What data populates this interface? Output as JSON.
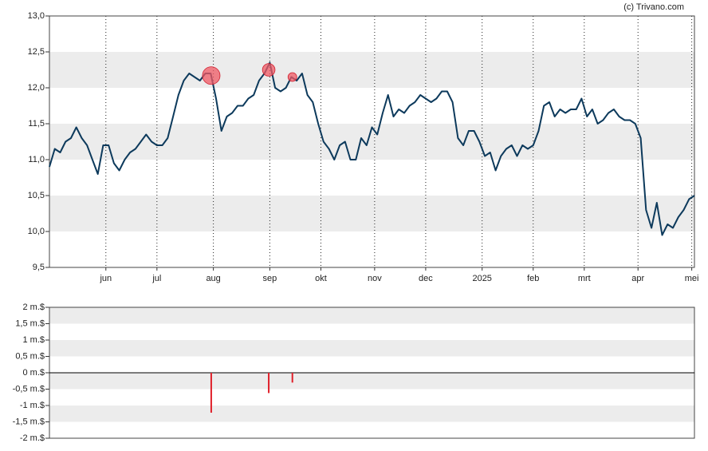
{
  "chart_data": [
    {
      "type": "line",
      "source": "(c) Trivano.com",
      "color": "#0d3a5c",
      "values": [
        10.9,
        11.15,
        11.1,
        11.25,
        11.3,
        11.45,
        11.3,
        11.2,
        11.0,
        10.8,
        11.2,
        11.2,
        10.95,
        10.85,
        11.0,
        11.1,
        11.15,
        11.25,
        11.35,
        11.25,
        11.2,
        11.2,
        11.3,
        11.6,
        11.9,
        12.1,
        12.2,
        12.15,
        12.1,
        12.2,
        12.2,
        11.85,
        11.4,
        11.6,
        11.65,
        11.75,
        11.75,
        11.85,
        11.9,
        12.1,
        12.2,
        12.35,
        12.0,
        11.95,
        12.0,
        12.15,
        12.1,
        12.2,
        11.9,
        11.8,
        11.5,
        11.25,
        11.15,
        11.0,
        11.2,
        11.25,
        11.0,
        11.0,
        11.3,
        11.2,
        11.45,
        11.35,
        11.65,
        11.9,
        11.6,
        11.7,
        11.65,
        11.75,
        11.8,
        11.9,
        11.85,
        11.8,
        11.85,
        11.95,
        11.95,
        11.8,
        11.3,
        11.2,
        11.4,
        11.4,
        11.25,
        11.05,
        11.1,
        10.85,
        11.05,
        11.15,
        11.2,
        11.05,
        11.2,
        11.15,
        11.2,
        11.4,
        11.75,
        11.8,
        11.6,
        11.7,
        11.65,
        11.7,
        11.7,
        11.85,
        11.6,
        11.7,
        11.5,
        11.55,
        11.65,
        11.7,
        11.6,
        11.55,
        11.55,
        11.5,
        11.3,
        10.3,
        10.05,
        10.4,
        9.95,
        10.1,
        10.05,
        10.2,
        10.3,
        10.45,
        10.5
      ],
      "markers": {
        "x": [
          30.1,
          40.8,
          45.2
        ],
        "values": [
          12.17,
          12.25,
          12.15
        ],
        "color": "#f05a64"
      },
      "xlim": [
        0,
        120
      ],
      "xticks": [
        {
          "value": 10.5,
          "label": "jun"
        },
        {
          "value": 20,
          "label": "jul"
        },
        {
          "value": 30.5,
          "label": "aug"
        },
        {
          "value": 41,
          "label": "sep"
        },
        {
          "value": 50.5,
          "label": "okt"
        },
        {
          "value": 60.5,
          "label": "nov"
        },
        {
          "value": 70,
          "label": "dec"
        },
        {
          "value": 80.5,
          "label": "2025"
        },
        {
          "value": 90,
          "label": "feb"
        },
        {
          "value": 99.5,
          "label": "mrt"
        },
        {
          "value": 109.5,
          "label": "apr"
        },
        {
          "value": 119.5,
          "label": "mei"
        }
      ],
      "ylim": [
        9.5,
        13
      ],
      "yticks": [
        {
          "value": 9.5,
          "label": "9,5"
        },
        {
          "value": 10,
          "label": "10,0"
        },
        {
          "value": 10.5,
          "label": "10,5"
        },
        {
          "value": 11,
          "label": "11,0"
        },
        {
          "value": 11.5,
          "label": "11,5"
        },
        {
          "value": 12,
          "label": "12,0"
        },
        {
          "value": 12.5,
          "label": "12,5"
        },
        {
          "value": 13,
          "label": "13,0"
        }
      ],
      "grid": true
    },
    {
      "type": "bar",
      "color": "#e0202a",
      "x": [
        30.1,
        40.8,
        45.2
      ],
      "values": [
        -1.22,
        -0.62,
        -0.3
      ],
      "xlim": [
        0,
        120
      ],
      "ylim": [
        -2,
        2
      ],
      "yticks": [
        {
          "value": -2,
          "label": "-2 m.$"
        },
        {
          "value": -1.5,
          "label": "-1,5 m.$"
        },
        {
          "value": -1,
          "label": "-1 m.$"
        },
        {
          "value": -0.5,
          "label": "-0,5 m.$"
        },
        {
          "value": 0,
          "label": "0 m.$"
        },
        {
          "value": 0.5,
          "label": "0,5 m.$"
        },
        {
          "value": 1,
          "label": "1 m.$"
        },
        {
          "value": 1.5,
          "label": "1,5 m.$"
        },
        {
          "value": 2,
          "label": "2 m.$"
        }
      ]
    }
  ]
}
